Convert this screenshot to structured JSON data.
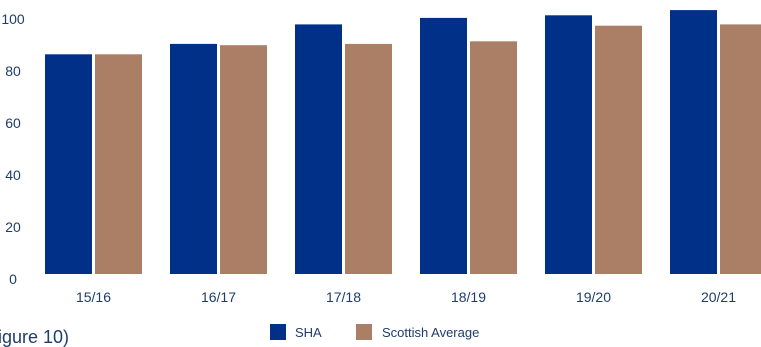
{
  "caption": "igure 10)",
  "colors": {
    "sha": "#003087",
    "scottish_average": "#ab7f66",
    "text": "#1e3d6b"
  },
  "chart_data": {
    "type": "bar",
    "categories": [
      "15/16",
      "16/17",
      "17/18",
      "18/19",
      "19/20",
      "20/21"
    ],
    "series": [
      {
        "name": "SHA",
        "values": [
          84.5,
          88.5,
          96,
          98.5,
          99.5,
          101.5
        ]
      },
      {
        "name": "Scottish Average",
        "values": [
          84.5,
          88,
          88.5,
          89.5,
          95.5,
          96
        ]
      }
    ],
    "yticks": [
      0,
      20,
      40,
      60,
      80,
      100
    ],
    "ylim": [
      0,
      100
    ],
    "grid": false,
    "legend_position": "bottom-center"
  }
}
